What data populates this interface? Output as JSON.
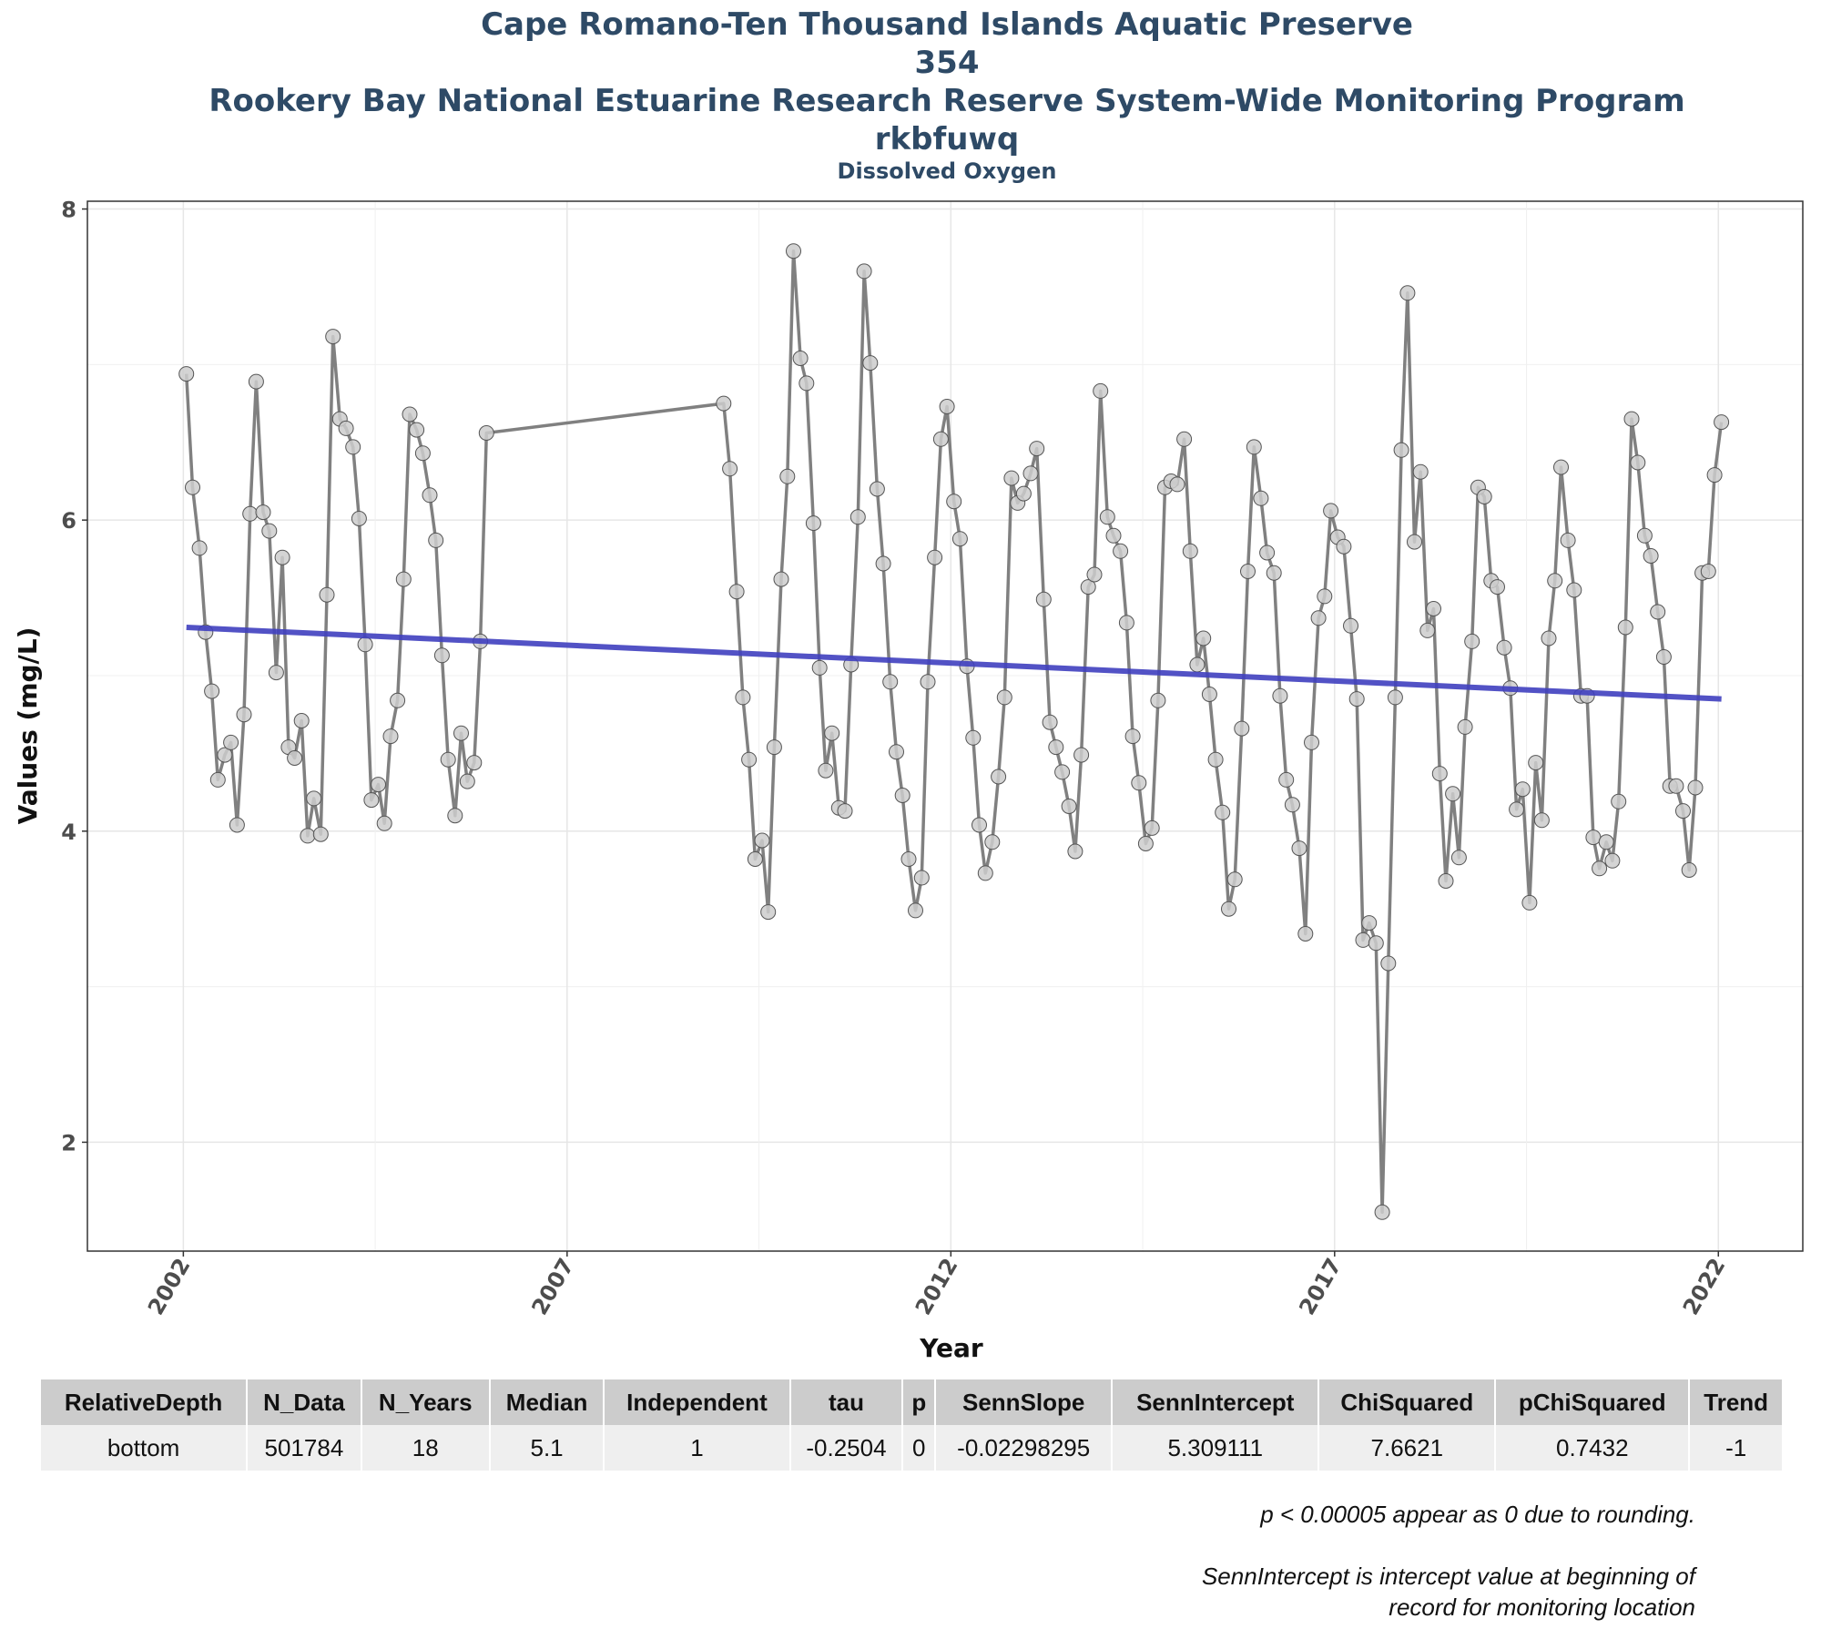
{
  "chart_data": {
    "type": "line",
    "title_lines": [
      "Cape Romano-Ten Thousand Islands Aquatic Preserve",
      "354",
      "Rookery Bay National Estuarine Research Reserve System-Wide Monitoring Program",
      "rkbfuwq"
    ],
    "subtitle": "Dissolved Oxygen",
    "xlabel": "Year",
    "ylabel": "Values (mg/L)",
    "xlim": [
      2000.75,
      2023.1
    ],
    "ylim": [
      1.3,
      8.05
    ],
    "xticks": [
      2002,
      2007,
      2012,
      2017,
      2022
    ],
    "yticks": [
      2,
      4,
      6,
      8
    ],
    "grid": true,
    "series": [
      {
        "values_points": [
          [
            2002.04,
            6.94
          ],
          [
            2002.12,
            6.21
          ],
          [
            2002.21,
            5.82
          ],
          [
            2002.29,
            5.28
          ],
          [
            2002.37,
            4.9
          ],
          [
            2002.45,
            4.33
          ],
          [
            2002.54,
            4.49
          ],
          [
            2002.62,
            4.57
          ],
          [
            2002.7,
            4.04
          ],
          [
            2002.79,
            4.75
          ],
          [
            2002.87,
            6.04
          ],
          [
            2002.95,
            6.89
          ],
          [
            2003.04,
            6.05
          ],
          [
            2003.12,
            5.93
          ],
          [
            2003.21,
            5.02
          ],
          [
            2003.29,
            5.76
          ],
          [
            2003.37,
            4.54
          ],
          [
            2003.45,
            4.47
          ],
          [
            2003.54,
            4.71
          ],
          [
            2003.62,
            3.97
          ],
          [
            2003.7,
            4.21
          ],
          [
            2003.79,
            3.98
          ],
          [
            2003.87,
            5.52
          ],
          [
            2003.95,
            7.18
          ],
          [
            2004.04,
            6.65
          ],
          [
            2004.12,
            6.59
          ],
          [
            2004.21,
            6.47
          ],
          [
            2004.29,
            6.01
          ],
          [
            2004.37,
            5.2
          ],
          [
            2004.45,
            4.2
          ],
          [
            2004.54,
            4.3
          ],
          [
            2004.62,
            4.05
          ],
          [
            2004.7,
            4.61
          ],
          [
            2004.79,
            4.84
          ],
          [
            2004.87,
            5.62
          ],
          [
            2004.95,
            6.68
          ],
          [
            2005.04,
            6.58
          ],
          [
            2005.12,
            6.43
          ],
          [
            2005.21,
            6.16
          ],
          [
            2005.29,
            5.87
          ],
          [
            2005.37,
            5.13
          ],
          [
            2005.45,
            4.46
          ],
          [
            2005.54,
            4.1
          ],
          [
            2005.62,
            4.63
          ],
          [
            2005.7,
            4.32
          ],
          [
            2005.79,
            4.44
          ],
          [
            2005.87,
            5.22
          ],
          [
            2005.95,
            6.56
          ],
          [
            2009.04,
            6.75
          ],
          [
            2009.12,
            6.33
          ],
          [
            2009.21,
            5.54
          ],
          [
            2009.29,
            4.86
          ],
          [
            2009.37,
            4.46
          ],
          [
            2009.45,
            3.82
          ],
          [
            2009.54,
            3.94
          ],
          [
            2009.62,
            3.48
          ],
          [
            2009.7,
            4.54
          ],
          [
            2009.79,
            5.62
          ],
          [
            2009.87,
            6.28
          ],
          [
            2009.95,
            7.73
          ],
          [
            2010.04,
            7.04
          ],
          [
            2010.12,
            6.88
          ],
          [
            2010.21,
            5.98
          ],
          [
            2010.29,
            5.05
          ],
          [
            2010.37,
            4.39
          ],
          [
            2010.45,
            4.63
          ],
          [
            2010.54,
            4.15
          ],
          [
            2010.62,
            4.13
          ],
          [
            2010.7,
            5.07
          ],
          [
            2010.79,
            6.02
          ],
          [
            2010.87,
            7.6
          ],
          [
            2010.95,
            7.01
          ],
          [
            2011.04,
            6.2
          ],
          [
            2011.12,
            5.72
          ],
          [
            2011.21,
            4.96
          ],
          [
            2011.29,
            4.51
          ],
          [
            2011.37,
            4.23
          ],
          [
            2011.45,
            3.82
          ],
          [
            2011.54,
            3.49
          ],
          [
            2011.62,
            3.7
          ],
          [
            2011.7,
            4.96
          ],
          [
            2011.79,
            5.76
          ],
          [
            2011.87,
            6.52
          ],
          [
            2011.95,
            6.73
          ],
          [
            2012.04,
            6.12
          ],
          [
            2012.12,
            5.88
          ],
          [
            2012.21,
            5.06
          ],
          [
            2012.29,
            4.6
          ],
          [
            2012.37,
            4.04
          ],
          [
            2012.45,
            3.73
          ],
          [
            2012.54,
            3.93
          ],
          [
            2012.62,
            4.35
          ],
          [
            2012.7,
            4.86
          ],
          [
            2012.79,
            6.27
          ],
          [
            2012.87,
            6.11
          ],
          [
            2012.95,
            6.17
          ],
          [
            2013.04,
            6.3
          ],
          [
            2013.12,
            6.46
          ],
          [
            2013.21,
            5.49
          ],
          [
            2013.29,
            4.7
          ],
          [
            2013.37,
            4.54
          ],
          [
            2013.45,
            4.38
          ],
          [
            2013.54,
            4.16
          ],
          [
            2013.62,
            3.87
          ],
          [
            2013.7,
            4.49
          ],
          [
            2013.79,
            5.57
          ],
          [
            2013.87,
            5.65
          ],
          [
            2013.95,
            6.83
          ],
          [
            2014.04,
            6.02
          ],
          [
            2014.12,
            5.9
          ],
          [
            2014.21,
            5.8
          ],
          [
            2014.29,
            5.34
          ],
          [
            2014.37,
            4.61
          ],
          [
            2014.45,
            4.31
          ],
          [
            2014.54,
            3.92
          ],
          [
            2014.62,
            4.02
          ],
          [
            2014.7,
            4.84
          ],
          [
            2014.79,
            6.21
          ],
          [
            2014.87,
            6.25
          ],
          [
            2014.95,
            6.23
          ],
          [
            2015.04,
            6.52
          ],
          [
            2015.12,
            5.8
          ],
          [
            2015.21,
            5.07
          ],
          [
            2015.29,
            5.24
          ],
          [
            2015.37,
            4.88
          ],
          [
            2015.45,
            4.46
          ],
          [
            2015.54,
            4.12
          ],
          [
            2015.62,
            3.5
          ],
          [
            2015.7,
            3.69
          ],
          [
            2015.79,
            4.66
          ],
          [
            2015.87,
            5.67
          ],
          [
            2015.95,
            6.47
          ],
          [
            2016.04,
            6.14
          ],
          [
            2016.12,
            5.79
          ],
          [
            2016.21,
            5.66
          ],
          [
            2016.29,
            4.87
          ],
          [
            2016.37,
            4.33
          ],
          [
            2016.45,
            4.17
          ],
          [
            2016.54,
            3.89
          ],
          [
            2016.62,
            3.34
          ],
          [
            2016.7,
            4.57
          ],
          [
            2016.79,
            5.37
          ],
          [
            2016.87,
            5.51
          ],
          [
            2016.95,
            6.06
          ],
          [
            2017.04,
            5.89
          ],
          [
            2017.12,
            5.83
          ],
          [
            2017.21,
            5.32
          ],
          [
            2017.29,
            4.85
          ],
          [
            2017.37,
            3.3
          ],
          [
            2017.45,
            3.41
          ],
          [
            2017.54,
            3.28
          ],
          [
            2017.62,
            1.55
          ],
          [
            2017.7,
            3.15
          ],
          [
            2017.79,
            4.86
          ],
          [
            2017.87,
            6.45
          ],
          [
            2017.95,
            7.46
          ],
          [
            2018.04,
            5.86
          ],
          [
            2018.12,
            6.31
          ],
          [
            2018.21,
            5.29
          ],
          [
            2018.29,
            5.43
          ],
          [
            2018.37,
            4.37
          ],
          [
            2018.45,
            3.68
          ],
          [
            2018.54,
            4.24
          ],
          [
            2018.62,
            3.83
          ],
          [
            2018.7,
            4.67
          ],
          [
            2018.79,
            5.22
          ],
          [
            2018.87,
            6.21
          ],
          [
            2018.95,
            6.15
          ],
          [
            2019.04,
            5.61
          ],
          [
            2019.12,
            5.57
          ],
          [
            2019.21,
            5.18
          ],
          [
            2019.29,
            4.92
          ],
          [
            2019.37,
            4.14
          ],
          [
            2019.45,
            4.27
          ],
          [
            2019.54,
            3.54
          ],
          [
            2019.62,
            4.44
          ],
          [
            2019.7,
            4.07
          ],
          [
            2019.79,
            5.24
          ],
          [
            2019.87,
            5.61
          ],
          [
            2019.95,
            6.34
          ],
          [
            2020.04,
            5.87
          ],
          [
            2020.12,
            5.55
          ],
          [
            2020.21,
            4.87
          ],
          [
            2020.29,
            4.87
          ],
          [
            2020.37,
            3.96
          ],
          [
            2020.45,
            3.76
          ],
          [
            2020.54,
            3.93
          ],
          [
            2020.62,
            3.81
          ],
          [
            2020.7,
            4.19
          ],
          [
            2020.79,
            5.31
          ],
          [
            2020.87,
            6.65
          ],
          [
            2020.95,
            6.37
          ],
          [
            2021.04,
            5.9
          ],
          [
            2021.12,
            5.77
          ],
          [
            2021.21,
            5.41
          ],
          [
            2021.29,
            5.12
          ],
          [
            2021.37,
            4.29
          ],
          [
            2021.45,
            4.29
          ],
          [
            2021.54,
            4.13
          ],
          [
            2021.62,
            3.75
          ],
          [
            2021.7,
            4.28
          ],
          [
            2021.79,
            5.66
          ],
          [
            2021.87,
            5.67
          ],
          [
            2021.95,
            6.29
          ],
          [
            2022.04,
            6.63
          ]
        ]
      }
    ],
    "trend_line": {
      "x": [
        2002.04,
        2022.04
      ],
      "y": [
        5.31,
        4.85
      ]
    },
    "colors": {
      "line": "#808080",
      "marker_fill": "#cccccc",
      "marker_edge": "#555555",
      "trend": "#3f3fbf",
      "title": "#2e4a66"
    }
  },
  "table": {
    "headers": [
      "RelativeDepth",
      "N_Data",
      "N_Years",
      "Median",
      "Independent",
      "tau",
      "p",
      "SennSlope",
      "SennIntercept",
      "ChiSquared",
      "pChiSquared",
      "Trend"
    ],
    "rows": [
      [
        "bottom",
        "501784",
        "18",
        "5.1",
        "1",
        "-0.2504",
        "0",
        "-0.02298295",
        "5.309111",
        "7.6621",
        "0.7432",
        "-1"
      ]
    ]
  },
  "notes": {
    "rounding": "p < 0.00005 appear as 0 due to rounding.",
    "intercept_line1": "SennIntercept is intercept value at beginning of",
    "intercept_line2": "record for monitoring location"
  }
}
